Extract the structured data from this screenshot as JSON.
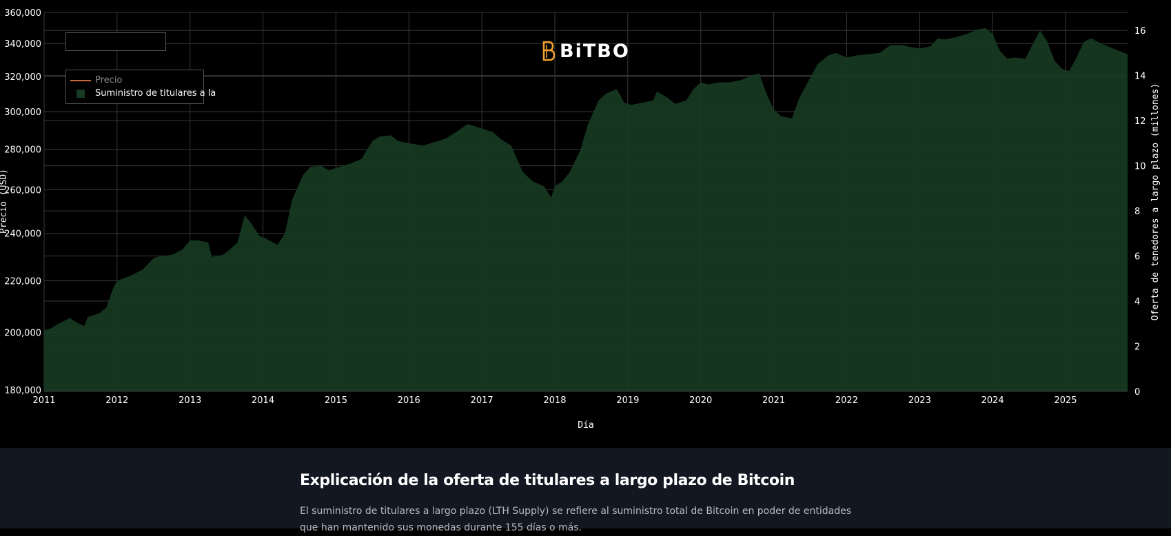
{
  "logo": {
    "text": "BiTBO"
  },
  "legend": {
    "price_label": "Precio",
    "supply_label": "Suministro de titulares a la"
  },
  "colors": {
    "background": "#000000",
    "area_fill": "#173a22",
    "price_line": "#c8693a",
    "logo_accent": "#f0a030",
    "info_background": "#131722"
  },
  "section": {
    "title": "Explicación de la oferta de titulares a largo plazo de Bitcoin",
    "text": "El suministro de titulares a largo plazo (LTH Supply) se refiere al suministro total de Bitcoin en poder de entidades que han mantenido sus monedas durante 155 días o más."
  },
  "chart_data": {
    "type": "area",
    "xlabel": "Día",
    "ylabel_left": "Precio (USD)",
    "ylabel_right": "Oferta de tenedores a largo plazo (millones)",
    "left_ticks": [
      "180,000",
      "200,000",
      "220,000",
      "240,000",
      "260,000",
      "280,000",
      "300,000",
      "320,000",
      "340,000",
      "360,000"
    ],
    "right_ticks": [
      "0",
      "2",
      "4",
      "6",
      "8",
      "10",
      "12",
      "14",
      "16"
    ],
    "x_ticks": [
      "2011",
      "2012",
      "2013",
      "2014",
      "2015",
      "2016",
      "2017",
      "2018",
      "2019",
      "2020",
      "2021",
      "2022",
      "2023",
      "2024",
      "2025"
    ],
    "xlim": [
      2011.0,
      2025.85
    ],
    "ylim_right": [
      0,
      16.8
    ],
    "grid": true,
    "legend_position": "top-left",
    "series": [
      {
        "name": "Suministro de titulares a la",
        "axis": "right",
        "x": [
          2011.0,
          2011.1,
          2011.2,
          2011.35,
          2011.45,
          2011.55,
          2011.6,
          2011.75,
          2011.85,
          2011.95,
          2012.0,
          2012.2,
          2012.35,
          2012.5,
          2012.6,
          2012.75,
          2012.9,
          2013.0,
          2013.1,
          2013.25,
          2013.3,
          2013.45,
          2013.55,
          2013.65,
          2013.75,
          2013.85,
          2013.95,
          2014.05,
          2014.2,
          2014.3,
          2014.4,
          2014.55,
          2014.65,
          2014.8,
          2014.9,
          2015.0,
          2015.2,
          2015.35,
          2015.5,
          2015.6,
          2015.75,
          2015.85,
          2016.0,
          2016.2,
          2016.35,
          2016.5,
          2016.65,
          2016.8,
          2016.9,
          2017.0,
          2017.15,
          2017.25,
          2017.4,
          2017.55,
          2017.6,
          2017.7,
          2017.85,
          2017.95,
          2018.0,
          2018.1,
          2018.2,
          2018.35,
          2018.45,
          2018.6,
          2018.7,
          2018.85,
          2018.9,
          2018.95,
          2019.05,
          2019.2,
          2019.35,
          2019.4,
          2019.55,
          2019.65,
          2019.8,
          2019.9,
          2020.0,
          2020.1,
          2020.25,
          2020.4,
          2020.55,
          2020.7,
          2020.8,
          2020.9,
          2021.0,
          2021.1,
          2021.25,
          2021.35,
          2021.45,
          2021.6,
          2021.75,
          2021.85,
          2022.0,
          2022.15,
          2022.3,
          2022.45,
          2022.6,
          2022.75,
          2022.9,
          2023.0,
          2023.15,
          2023.25,
          2023.35,
          2023.5,
          2023.65,
          2023.8,
          2023.9,
          2024.0,
          2024.1,
          2024.2,
          2024.3,
          2024.45,
          2024.55,
          2024.65,
          2024.75,
          2024.85,
          2024.95,
          2025.05,
          2025.15,
          2025.25,
          2025.35,
          2025.5,
          2025.65,
          2025.85
        ],
        "values": [
          2.7,
          2.8,
          3.0,
          3.25,
          3.05,
          2.9,
          3.3,
          3.45,
          3.7,
          4.6,
          4.9,
          5.15,
          5.4,
          5.9,
          6.0,
          6.05,
          6.3,
          6.7,
          6.7,
          6.6,
          5.95,
          6.05,
          6.3,
          6.6,
          7.8,
          7.4,
          6.9,
          6.75,
          6.5,
          7.0,
          8.5,
          9.6,
          9.95,
          10.0,
          9.8,
          9.9,
          10.1,
          10.3,
          11.1,
          11.3,
          11.35,
          11.1,
          11.0,
          10.9,
          11.05,
          11.2,
          11.5,
          11.85,
          11.75,
          11.65,
          11.5,
          11.2,
          10.9,
          9.8,
          9.6,
          9.3,
          9.1,
          8.6,
          9.1,
          9.3,
          9.7,
          10.7,
          11.8,
          12.9,
          13.2,
          13.4,
          13.1,
          12.8,
          12.7,
          12.8,
          12.9,
          13.3,
          13.0,
          12.75,
          12.9,
          13.4,
          13.7,
          13.6,
          13.7,
          13.7,
          13.8,
          14.0,
          14.1,
          13.2,
          12.5,
          12.2,
          12.1,
          13.0,
          13.6,
          14.5,
          14.9,
          15.0,
          14.8,
          14.9,
          14.95,
          15.0,
          15.35,
          15.35,
          15.25,
          15.2,
          15.3,
          15.65,
          15.6,
          15.7,
          15.85,
          16.05,
          16.1,
          15.85,
          15.1,
          14.75,
          14.8,
          14.75,
          15.4,
          16.0,
          15.5,
          14.65,
          14.3,
          14.2,
          14.8,
          15.5,
          15.65,
          15.4,
          15.2,
          14.95
        ]
      },
      {
        "name": "Precio",
        "axis": "left",
        "x": [],
        "values": []
      }
    ]
  }
}
